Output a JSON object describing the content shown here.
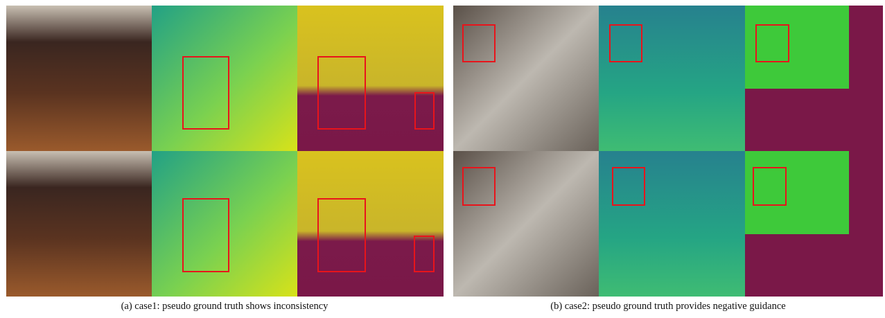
{
  "figure": {
    "panels": [
      {
        "caption": "(a) case1: pseudo ground truth shows inconsistency"
      },
      {
        "caption": "(b) case2: pseudo ground truth provides negative guidance"
      }
    ]
  }
}
